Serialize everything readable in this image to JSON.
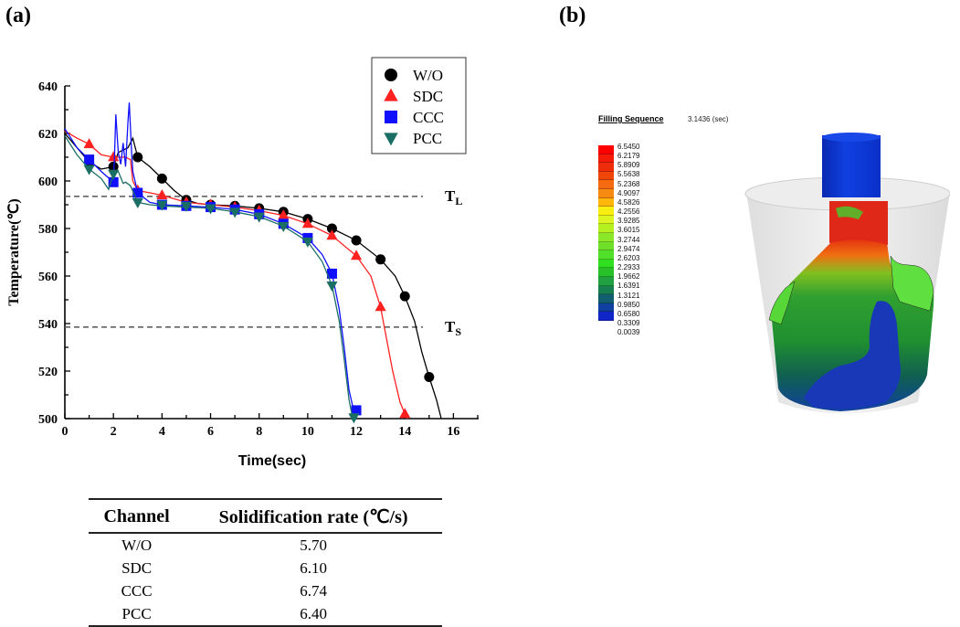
{
  "panels": {
    "a": "(a)",
    "b": "(b)"
  },
  "chart_data": {
    "type": "line",
    "title": "",
    "xlabel": "Time(sec)",
    "ylabel": "Temperature(℃)",
    "xlim": [
      0,
      17
    ],
    "ylim": [
      500,
      640
    ],
    "xticks": [
      0,
      2,
      4,
      6,
      8,
      10,
      12,
      14,
      16
    ],
    "yticks": [
      500,
      520,
      540,
      560,
      580,
      600,
      620,
      640
    ],
    "grid": false,
    "legend_position": "top-right",
    "reference_lines": [
      {
        "label": "T",
        "sub": "L",
        "value": 593.5
      },
      {
        "label": "T",
        "sub": "S",
        "value": 538.5
      }
    ],
    "series": [
      {
        "name": "W/O",
        "color": "#000000",
        "marker": "circle",
        "line": [
          [
            0,
            620
          ],
          [
            0.5,
            614
          ],
          [
            1,
            608
          ],
          [
            1.5,
            605
          ],
          [
            2,
            606
          ],
          [
            2.2,
            612
          ],
          [
            2.6,
            614
          ],
          [
            2.8,
            618
          ],
          [
            3,
            610
          ],
          [
            3.5,
            606
          ],
          [
            4,
            601
          ],
          [
            4.5,
            596
          ],
          [
            5,
            592
          ],
          [
            5.5,
            590.5
          ],
          [
            6,
            590
          ],
          [
            7,
            589.5
          ],
          [
            8,
            588.5
          ],
          [
            9,
            587
          ],
          [
            10,
            584
          ],
          [
            11,
            580
          ],
          [
            12,
            575
          ],
          [
            13,
            567
          ],
          [
            13.6,
            560
          ],
          [
            14,
            551.5
          ],
          [
            14.4,
            541
          ],
          [
            14.7,
            528
          ],
          [
            15,
            517.5
          ],
          [
            15.3,
            508
          ],
          [
            15.5,
            500
          ]
        ],
        "markers": [
          [
            1,
            608
          ],
          [
            2,
            606
          ],
          [
            3,
            610
          ],
          [
            4,
            601
          ],
          [
            5,
            592
          ],
          [
            6,
            590
          ],
          [
            7,
            589.5
          ],
          [
            8,
            588.5
          ],
          [
            9,
            587
          ],
          [
            10,
            584
          ],
          [
            11,
            580
          ],
          [
            12,
            575
          ],
          [
            13,
            567
          ],
          [
            14,
            551.5
          ],
          [
            15,
            517.5
          ]
        ]
      },
      {
        "name": "SDC",
        "color": "#ff2020",
        "marker": "triangle-up",
        "line": [
          [
            0,
            621
          ],
          [
            0.5,
            618
          ],
          [
            1,
            615.5
          ],
          [
            1.5,
            611
          ],
          [
            2,
            610
          ],
          [
            2.5,
            610
          ],
          [
            2.7,
            609
          ],
          [
            2.8,
            600
          ],
          [
            3,
            596
          ],
          [
            3.5,
            595
          ],
          [
            4,
            594
          ],
          [
            5,
            591
          ],
          [
            6,
            590
          ],
          [
            7,
            589
          ],
          [
            8,
            587.5
          ],
          [
            9,
            585.5
          ],
          [
            10,
            582
          ],
          [
            11,
            577
          ],
          [
            12,
            568.5
          ],
          [
            12.6,
            560
          ],
          [
            13,
            547
          ],
          [
            13.2,
            536
          ],
          [
            13.5,
            520
          ],
          [
            13.8,
            507
          ],
          [
            14,
            502
          ],
          [
            14.1,
            500
          ]
        ],
        "markers": [
          [
            1,
            615.5
          ],
          [
            2,
            610
          ],
          [
            3,
            596
          ],
          [
            4,
            594
          ],
          [
            5,
            591
          ],
          [
            6,
            590
          ],
          [
            7,
            589
          ],
          [
            8,
            587.5
          ],
          [
            9,
            585.5
          ],
          [
            10,
            582
          ],
          [
            11,
            577
          ],
          [
            12,
            568.5
          ],
          [
            13,
            547
          ],
          [
            14,
            502
          ]
        ]
      },
      {
        "name": "CCC",
        "color": "#1010ff",
        "marker": "square",
        "line": [
          [
            0,
            622
          ],
          [
            0.5,
            614
          ],
          [
            1,
            609
          ],
          [
            1.5,
            604
          ],
          [
            2,
            599.5
          ],
          [
            2.05,
            612
          ],
          [
            2.1,
            628
          ],
          [
            2.2,
            612
          ],
          [
            2.3,
            607
          ],
          [
            2.4,
            616
          ],
          [
            2.5,
            606
          ],
          [
            2.6,
            625
          ],
          [
            2.65,
            633
          ],
          [
            2.75,
            612
          ],
          [
            2.8,
            604
          ],
          [
            3,
            595
          ],
          [
            3.5,
            591
          ],
          [
            4,
            590
          ],
          [
            5,
            589.5
          ],
          [
            6,
            589
          ],
          [
            7,
            588
          ],
          [
            8,
            586
          ],
          [
            9,
            582
          ],
          [
            10,
            576
          ],
          [
            10.6,
            569
          ],
          [
            11,
            561
          ],
          [
            11.3,
            546
          ],
          [
            11.5,
            530
          ],
          [
            11.7,
            512
          ],
          [
            11.9,
            503
          ],
          [
            12,
            500
          ]
        ],
        "markers": [
          [
            1,
            609
          ],
          [
            2,
            599.5
          ],
          [
            3,
            595
          ],
          [
            4,
            590
          ],
          [
            5,
            589.5
          ],
          [
            6,
            589
          ],
          [
            7,
            588
          ],
          [
            8,
            586
          ],
          [
            9,
            582
          ],
          [
            10,
            576
          ],
          [
            11,
            561
          ],
          [
            12,
            503.5
          ]
        ]
      },
      {
        "name": "PCC",
        "color": "#1a6e64",
        "marker": "triangle-down",
        "line": [
          [
            0,
            619
          ],
          [
            0.5,
            611
          ],
          [
            1,
            605
          ],
          [
            1.5,
            601
          ],
          [
            1.8,
            596.5
          ],
          [
            2,
            603
          ],
          [
            2.2,
            604
          ],
          [
            2.4,
            599
          ],
          [
            2.5,
            599.5
          ],
          [
            2.7,
            598
          ],
          [
            3,
            591
          ],
          [
            3.5,
            590
          ],
          [
            4,
            589.5
          ],
          [
            5,
            589
          ],
          [
            6,
            588.5
          ],
          [
            7,
            587
          ],
          [
            8,
            585
          ],
          [
            9,
            581
          ],
          [
            10,
            574.5
          ],
          [
            10.6,
            566
          ],
          [
            11,
            556
          ],
          [
            11.3,
            541
          ],
          [
            11.5,
            525
          ],
          [
            11.7,
            508
          ],
          [
            11.85,
            500
          ]
        ],
        "markers": [
          [
            1,
            605
          ],
          [
            2,
            603
          ],
          [
            3,
            591
          ],
          [
            4,
            590
          ],
          [
            5,
            589.5
          ],
          [
            6,
            588.5
          ],
          [
            7,
            587
          ],
          [
            8,
            585
          ],
          [
            9,
            581
          ],
          [
            10,
            574.5
          ],
          [
            11,
            556
          ],
          [
            11.9,
            500.5
          ]
        ]
      }
    ]
  },
  "table": {
    "headers": [
      "Channel",
      "Solidification rate (℃/s)"
    ],
    "rows": [
      {
        "channel": "W/O",
        "rate": "5.70"
      },
      {
        "channel": "SDC",
        "rate": "6.10"
      },
      {
        "channel": "CCC",
        "rate": "6.74"
      },
      {
        "channel": "PCC",
        "rate": "6.40"
      }
    ]
  },
  "simulation": {
    "title": "Filling Sequence",
    "time": "3.1436 (sec)",
    "scale_values": [
      "6.5450",
      "6.2179",
      "5.8909",
      "5.5638",
      "5.2368",
      "4.9097",
      "4.5826",
      "4.2556",
      "3.9285",
      "3.6015",
      "3.2744",
      "2.9474",
      "2.6203",
      "2.2933",
      "1.9662",
      "1.6391",
      "1.3121",
      "0.9850",
      "0.6580",
      "0.3309",
      "0.0039"
    ],
    "scale_colors": [
      "#ff0000",
      "#f41a08",
      "#ef2d0a",
      "#f0460a",
      "#f56a10",
      "#f78a10",
      "#ffb60a",
      "#f8ee10",
      "#dcf520",
      "#b4f020",
      "#8ae828",
      "#6ee02a",
      "#50e02a",
      "#30e020",
      "#28c028",
      "#20a040",
      "#188050",
      "#105e70",
      "#1040a0",
      "#1025c8",
      "#1010f0"
    ]
  }
}
